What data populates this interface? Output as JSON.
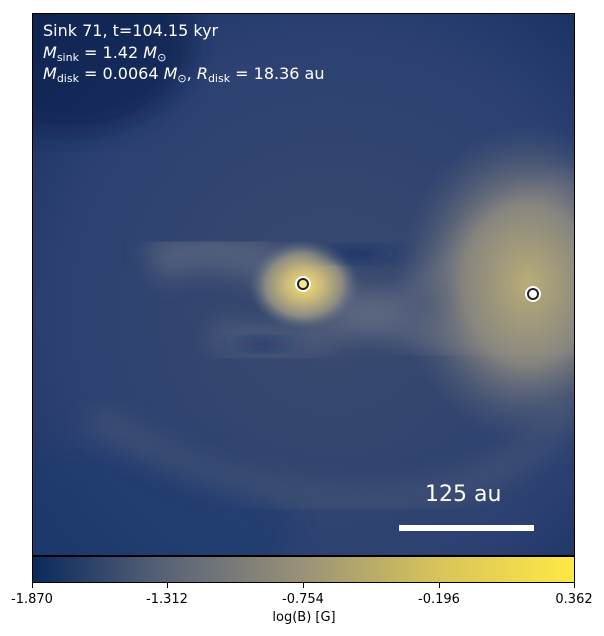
{
  "annotation": {
    "line1": "Sink 71, t=104.15 kyr",
    "msink_sym": "M",
    "msink_sub": "sink",
    "msink_val": " = 1.42 ",
    "msun_sym": "M",
    "msun_sub": "⊙",
    "mdisk_sym": "M",
    "mdisk_sub": "disk",
    "mdisk_val": " = 0.0064 ",
    "rdisk_sym": "R",
    "rdisk_sub": "disk",
    "rdisk_val": " = 18.36 au"
  },
  "scale_bar": {
    "label": "125 au"
  },
  "colorbar": {
    "label": "log(B) [G]",
    "ticks": [
      "-1.870",
      "-1.312",
      "-0.754",
      "-0.196",
      "0.362"
    ],
    "colors": [
      "#0a2a5c",
      "#5a6478",
      "#9a9278",
      "#d8c45a",
      "#ffe844"
    ]
  },
  "sinks": [
    {
      "name": "sink-primary"
    },
    {
      "name": "sink-secondary"
    }
  ]
}
